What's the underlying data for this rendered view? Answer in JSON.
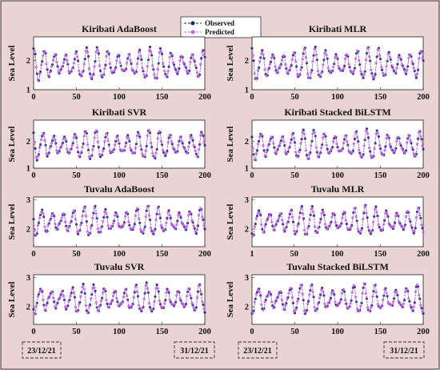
{
  "legend": {
    "observed": "Observed",
    "predicted": "Predicted"
  },
  "colors": {
    "background": "#e9d3d3",
    "border": "#3a2a2a",
    "observed": "#1a1f7a",
    "predicted": "#c85cf0"
  },
  "date_labels": {
    "start": "23/12/21",
    "end": "31/12/21"
  },
  "chart_data": [
    {
      "type": "line",
      "title": "Kiribati AdaBoost",
      "ylabel": "Sea Level",
      "xlim": [
        0,
        200
      ],
      "ylim": [
        1,
        2.8
      ],
      "xticks": [
        0,
        50,
        100,
        150,
        200
      ],
      "yticks": [
        1,
        2
      ],
      "ytick_labels": [
        "1",
        "2"
      ],
      "series": [
        {
          "name": "Observed",
          "generator": "tide",
          "mean": 1.85,
          "amplitude": 0.55
        },
        {
          "name": "Predicted",
          "generator": "tide",
          "mean": 1.85,
          "amplitude": 0.5
        }
      ]
    },
    {
      "type": "line",
      "title": "Kiribati MLR",
      "ylabel": "Sea Level",
      "xlim": [
        0,
        200
      ],
      "ylim": [
        1,
        2.8
      ],
      "xticks": [
        0,
        50,
        100,
        150,
        200
      ],
      "yticks": [
        1,
        2
      ],
      "ytick_labels": [
        "1",
        "2"
      ],
      "series": [
        {
          "name": "Observed",
          "generator": "tide",
          "mean": 1.85,
          "amplitude": 0.55
        },
        {
          "name": "Predicted",
          "generator": "tide",
          "mean": 1.85,
          "amplitude": 0.5
        }
      ]
    },
    {
      "type": "line",
      "title": "Kiribati SVR",
      "ylabel": "Sea Level",
      "xlim": [
        0,
        200
      ],
      "ylim": [
        1,
        2.8
      ],
      "xticks": [
        0,
        50,
        100,
        150,
        200
      ],
      "yticks": [
        1,
        2
      ],
      "ytick_labels": [
        "1",
        "2"
      ],
      "series": [
        {
          "name": "Observed",
          "generator": "tide",
          "mean": 1.85,
          "amplitude": 0.55
        },
        {
          "name": "Predicted",
          "generator": "tide",
          "mean": 1.85,
          "amplitude": 0.5
        }
      ]
    },
    {
      "type": "line",
      "title": "Kiribati Stacked BiLSTM",
      "ylabel": "Sea Level",
      "xlim": [
        0,
        200
      ],
      "ylim": [
        1,
        2.8
      ],
      "xticks": [
        0,
        50,
        100,
        150,
        200
      ],
      "yticks": [
        1,
        2
      ],
      "ytick_labels": [
        "1",
        "2"
      ],
      "series": [
        {
          "name": "Observed",
          "generator": "tide",
          "mean": 1.85,
          "amplitude": 0.55
        },
        {
          "name": "Predicted",
          "generator": "tide",
          "mean": 1.85,
          "amplitude": 0.52
        }
      ]
    },
    {
      "type": "line",
      "title": "Tuvalu AdaBoost",
      "ylabel": "Sea Level",
      "xlim": [
        0,
        200
      ],
      "ylim": [
        1.4,
        3.1
      ],
      "xticks": [
        0,
        50,
        100,
        150,
        200
      ],
      "yticks": [
        2,
        3
      ],
      "ytick_labels": [
        "2",
        "3"
      ],
      "series": [
        {
          "name": "Observed",
          "generator": "tide",
          "mean": 2.25,
          "amplitude": 0.5
        },
        {
          "name": "Predicted",
          "generator": "tide",
          "mean": 2.25,
          "amplitude": 0.45
        }
      ]
    },
    {
      "type": "line",
      "title": "Tuvalu MLR",
      "ylabel": "Sea Level",
      "xlim": [
        1,
        200
      ],
      "ylim": [
        1.4,
        3.1
      ],
      "xticks": [
        1,
        50,
        100,
        150,
        200
      ],
      "yticks": [
        2,
        3
      ],
      "ytick_labels": [
        "2",
        "3"
      ],
      "series": [
        {
          "name": "Observed",
          "generator": "tide",
          "mean": 2.25,
          "amplitude": 0.5
        },
        {
          "name": "Predicted",
          "generator": "tide",
          "mean": 2.25,
          "amplitude": 0.45
        }
      ]
    },
    {
      "type": "line",
      "title": "Tuvalu SVR",
      "ylabel": "Sea Level",
      "xlim": [
        0,
        200
      ],
      "ylim": [
        1.4,
        3.1
      ],
      "xticks": [
        0,
        50,
        100,
        150,
        200
      ],
      "yticks": [
        2,
        3
      ],
      "ytick_labels": [
        "2",
        "3"
      ],
      "series": [
        {
          "name": "Observed",
          "generator": "tide",
          "mean": 2.25,
          "amplitude": 0.5
        },
        {
          "name": "Predicted",
          "generator": "tide",
          "mean": 2.25,
          "amplitude": 0.45
        }
      ]
    },
    {
      "type": "line",
      "title": "Tuvalu Stacked BiLSTM",
      "ylabel": "Sea Level",
      "xlim": [
        0,
        200
      ],
      "ylim": [
        1.4,
        3.1
      ],
      "xticks": [
        0,
        50,
        100,
        150,
        200
      ],
      "yticks": [
        2,
        3
      ],
      "ytick_labels": [
        "2",
        "3"
      ],
      "series": [
        {
          "name": "Observed",
          "generator": "tide",
          "mean": 2.25,
          "amplitude": 0.5
        },
        {
          "name": "Predicted",
          "generator": "tide",
          "mean": 2.25,
          "amplitude": 0.47
        }
      ]
    }
  ]
}
